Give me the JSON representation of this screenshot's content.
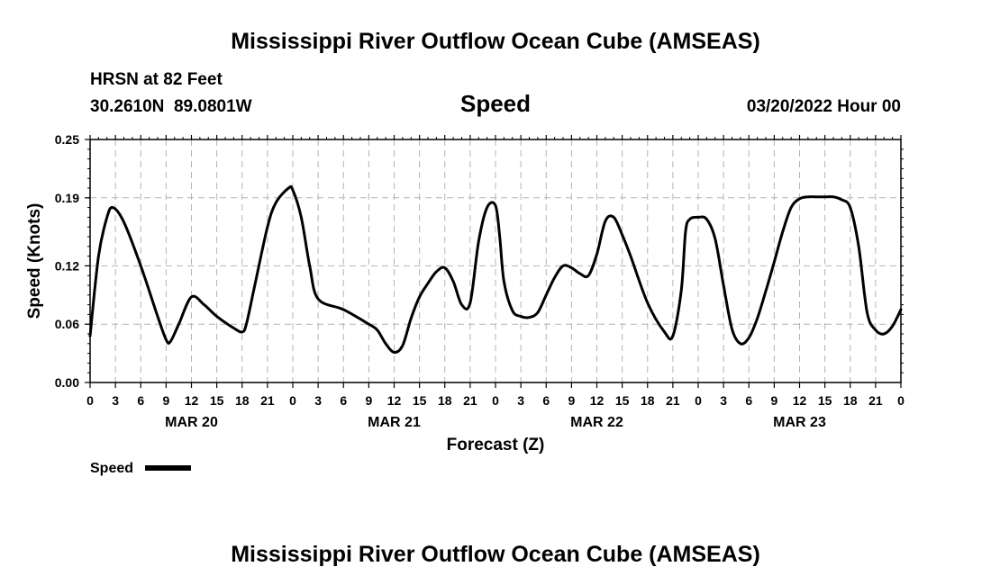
{
  "header": {
    "title": "Mississippi River Outflow Ocean Cube (AMSEAS)",
    "station": "HRSN at 82 Feet",
    "coords": "30.2610N  89.0801W",
    "variable": "Speed",
    "datetime": "03/20/2022 Hour 00"
  },
  "footer_title": "Mississippi River Outflow Ocean Cube (AMSEAS)",
  "chart_data": {
    "type": "line",
    "xlabel": "Forecast (Z)",
    "ylabel": "Speed (Knots)",
    "ylim": [
      0,
      0.25
    ],
    "y_ticks": [
      0.0,
      0.06,
      0.12,
      0.19,
      0.25
    ],
    "y_tick_labels": [
      "0.00",
      "0.06",
      "0.12",
      "0.19",
      "0.25"
    ],
    "xlim": [
      0,
      96
    ],
    "x_tick_hours": [
      0,
      3,
      6,
      9,
      12,
      15,
      18,
      21,
      24,
      27,
      30,
      33,
      36,
      39,
      42,
      45,
      48,
      51,
      54,
      57,
      60,
      63,
      66,
      69,
      72,
      75,
      78,
      81,
      84,
      87,
      90,
      93,
      96
    ],
    "x_tick_labels": [
      "0",
      "3",
      "6",
      "9",
      "12",
      "15",
      "18",
      "21",
      "0",
      "3",
      "6",
      "9",
      "12",
      "15",
      "18",
      "21",
      "0",
      "3",
      "6",
      "9",
      "12",
      "15",
      "18",
      "21",
      "0",
      "3",
      "6",
      "9",
      "12",
      "15",
      "18",
      "21",
      "0"
    ],
    "day_labels": [
      {
        "hour": 12,
        "label": "MAR 20"
      },
      {
        "hour": 36,
        "label": "MAR 21"
      },
      {
        "hour": 60,
        "label": "MAR 22"
      },
      {
        "hour": 84,
        "label": "MAR 23"
      }
    ],
    "grid": true,
    "legend_position": "bottom-left",
    "series": [
      {
        "name": "Speed",
        "color": "#000000",
        "x": [
          0,
          1,
          2,
          2.7,
          4,
          6,
          8,
          9,
          9.5,
          10.5,
          12,
          13.5,
          15,
          17,
          18,
          18.5,
          19.5,
          21,
          22,
          23.5,
          24,
          25,
          26,
          27,
          30,
          33,
          34,
          35,
          36,
          37,
          38,
          39,
          40,
          41,
          42,
          43,
          44,
          45,
          46,
          47,
          48,
          48.5,
          49,
          50,
          51,
          52,
          53,
          54,
          55,
          56,
          57,
          58,
          59,
          60,
          61,
          62,
          63,
          64,
          66,
          68,
          69,
          70,
          70.5,
          71,
          72,
          73,
          74,
          75,
          76,
          77,
          78,
          79,
          80,
          81,
          82,
          83,
          84,
          85,
          86,
          87,
          88,
          89,
          90,
          91,
          92,
          93,
          94,
          95,
          96
        ],
        "y": [
          0.048,
          0.13,
          0.17,
          0.18,
          0.165,
          0.12,
          0.068,
          0.044,
          0.042,
          0.06,
          0.088,
          0.08,
          0.068,
          0.056,
          0.052,
          0.06,
          0.1,
          0.16,
          0.185,
          0.2,
          0.198,
          0.17,
          0.12,
          0.086,
          0.075,
          0.06,
          0.054,
          0.04,
          0.031,
          0.038,
          0.066,
          0.088,
          0.102,
          0.114,
          0.118,
          0.104,
          0.08,
          0.082,
          0.145,
          0.18,
          0.182,
          0.15,
          0.104,
          0.074,
          0.068,
          0.067,
          0.072,
          0.09,
          0.108,
          0.12,
          0.118,
          0.112,
          0.11,
          0.132,
          0.166,
          0.17,
          0.152,
          0.13,
          0.082,
          0.052,
          0.048,
          0.095,
          0.155,
          0.168,
          0.17,
          0.168,
          0.148,
          0.1,
          0.055,
          0.04,
          0.046,
          0.066,
          0.094,
          0.124,
          0.155,
          0.18,
          0.189,
          0.191,
          0.191,
          0.191,
          0.191,
          0.188,
          0.18,
          0.14,
          0.072,
          0.054,
          0.05,
          0.058,
          0.075
        ]
      }
    ]
  }
}
